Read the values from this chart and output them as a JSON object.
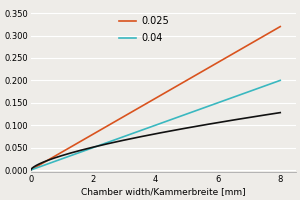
{
  "xlabel": "Chamber width/Kammerbreite [mm]",
  "xlim": [
    0,
    8.5
  ],
  "ylim": [
    -0.005,
    0.37
  ],
  "xticks": [
    0,
    2,
    4,
    6,
    8
  ],
  "yticks": [
    0.0,
    0.05,
    0.1,
    0.15,
    0.2,
    0.25,
    0.3,
    0.35
  ],
  "line_025_color": "#d9531e",
  "line_04_color": "#3ab8c0",
  "line_black_color": "#111111",
  "legend_labels": [
    "0.025",
    "0.04"
  ],
  "lambda_025": 0.025,
  "lambda_04": 0.04,
  "background_color": "#eeece8",
  "grid_color": "#ffffff",
  "x_max": 8.0,
  "label_fontsize": 6.5,
  "tick_fontsize": 6.0,
  "legend_fontsize": 7.0,
  "black_a": 0.0322,
  "black_n": 0.664
}
